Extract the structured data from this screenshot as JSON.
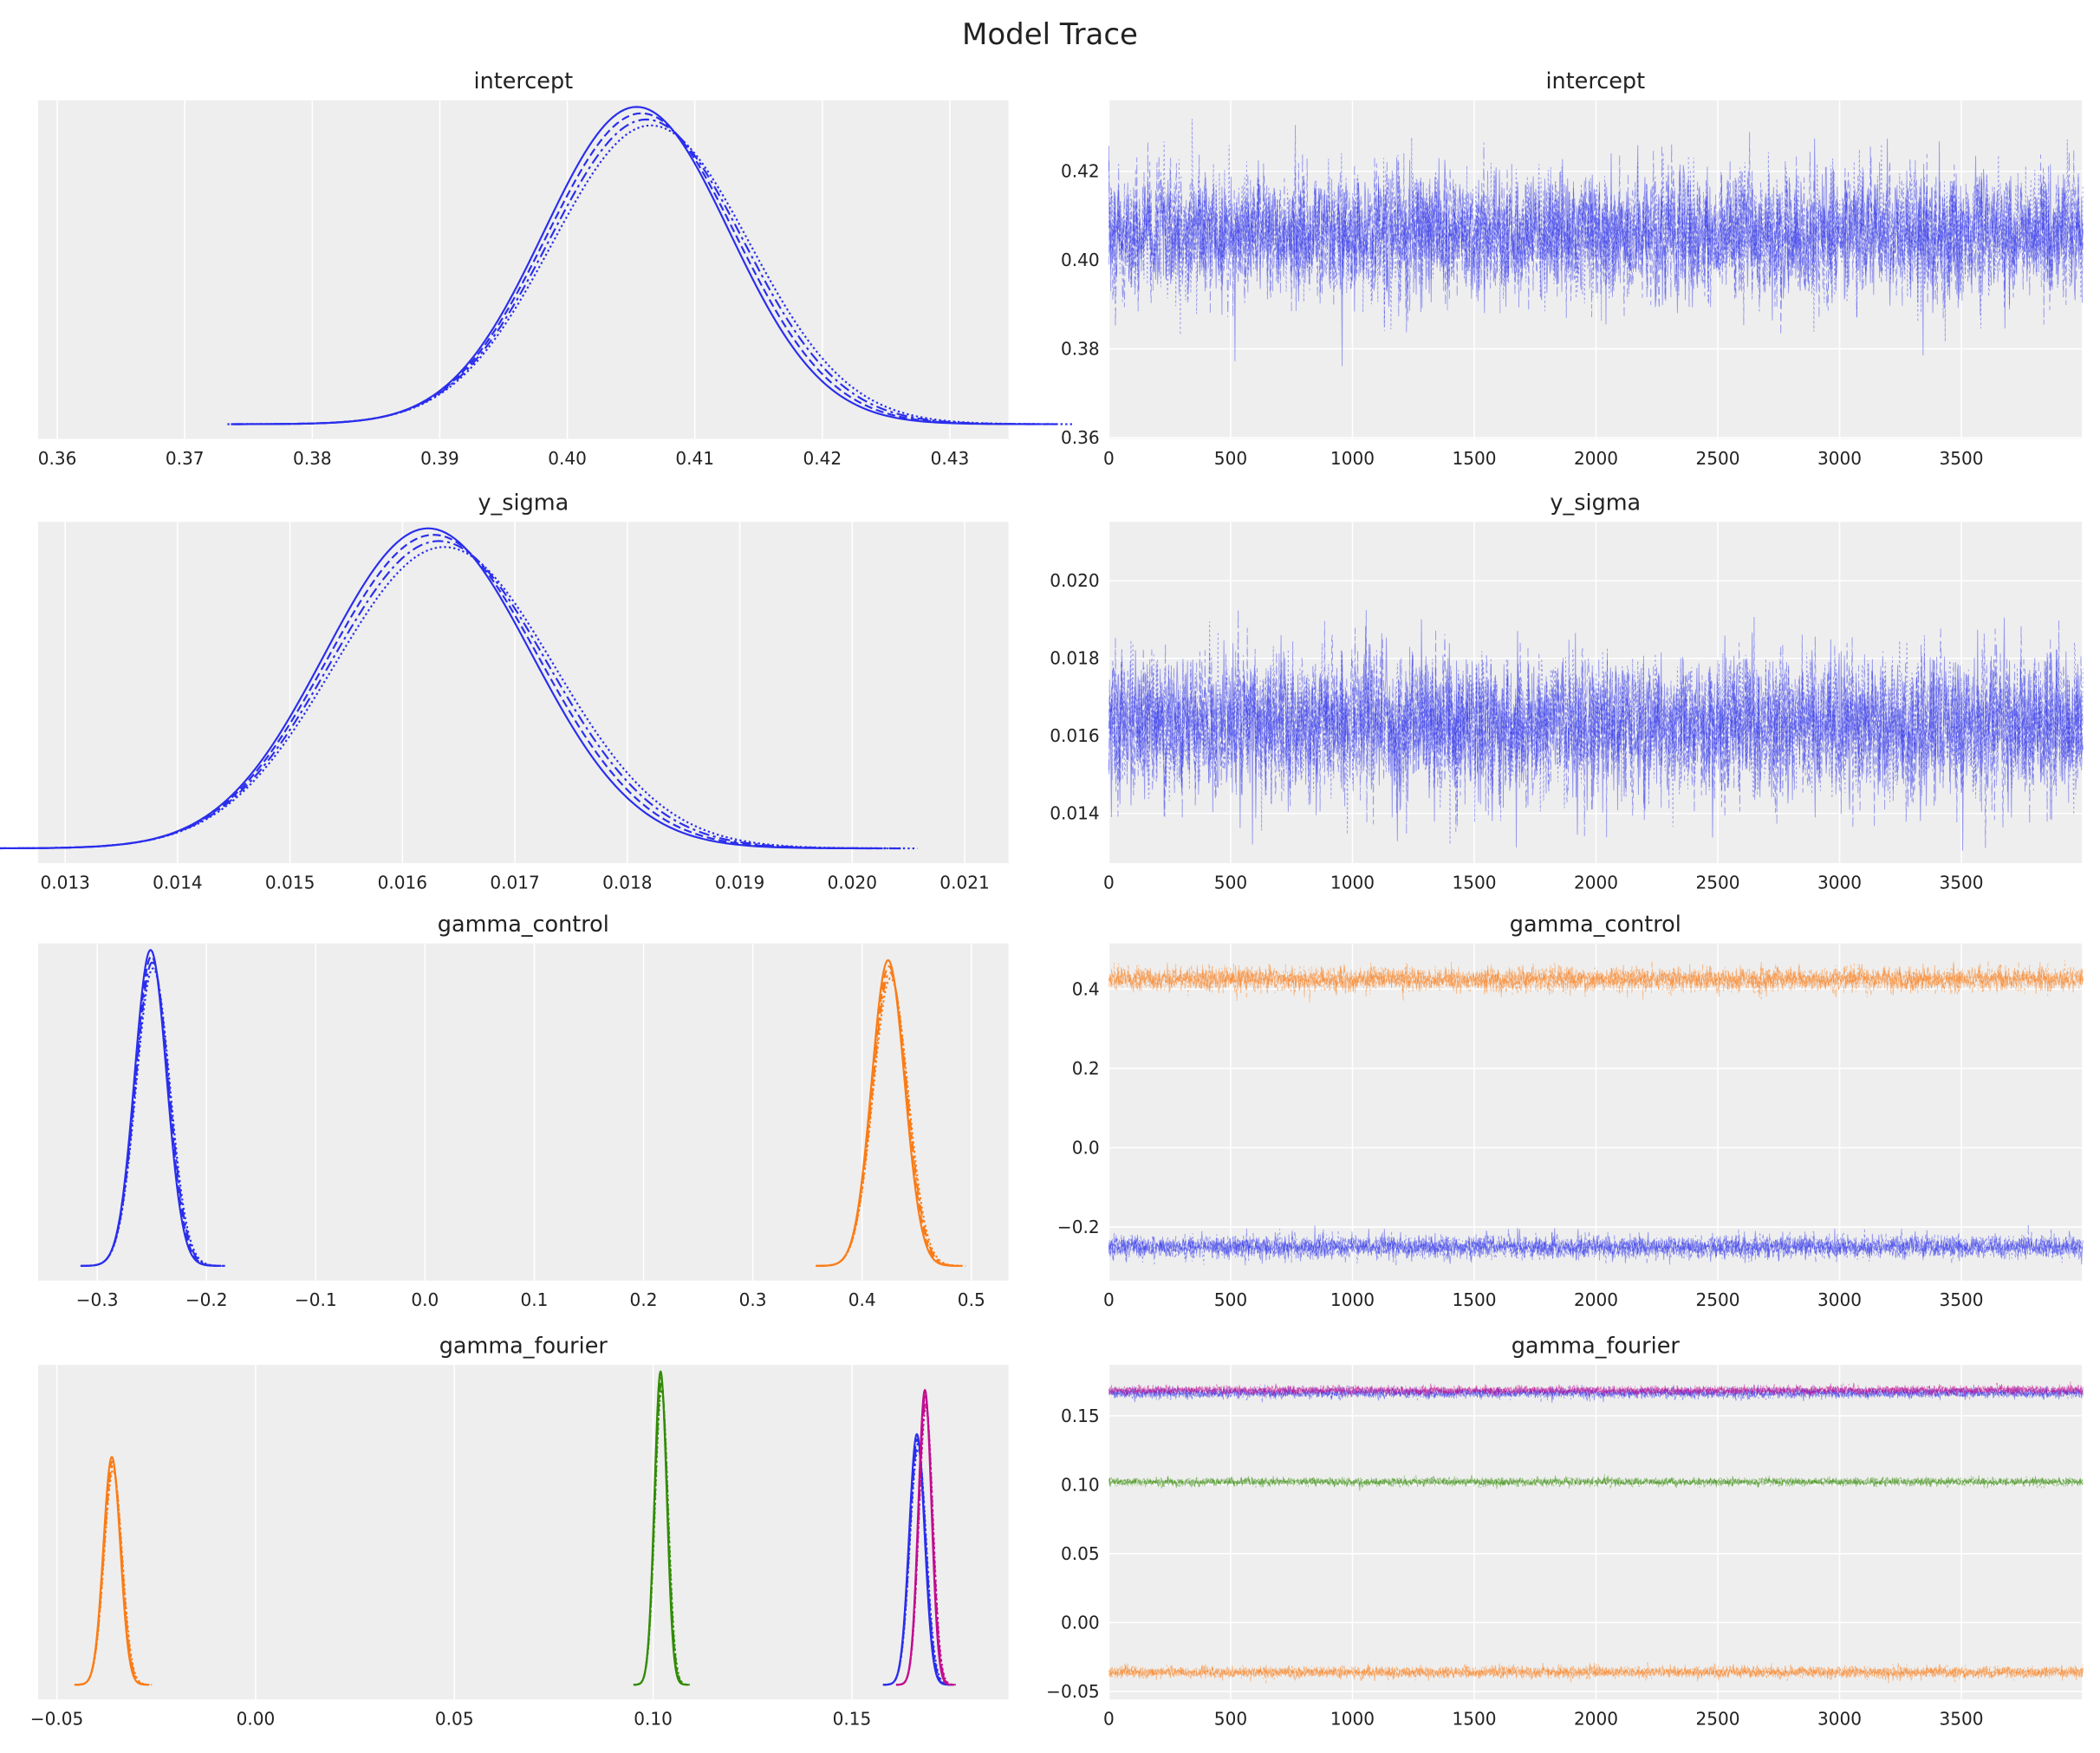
{
  "title": "Model Trace",
  "colors": {
    "background": "#eeeeee",
    "grid": "#ffffff",
    "text": "#222222"
  },
  "chart_data": [
    {
      "type": "line",
      "kind": "density",
      "title": "intercept",
      "grid": true,
      "xlim": [
        0.3585,
        0.4346
      ],
      "xticks": [
        0.36,
        0.37,
        0.38,
        0.39,
        0.4,
        0.41,
        0.42,
        0.43
      ],
      "xtick_labels": [
        "0.36",
        "0.37",
        "0.38",
        "0.39",
        "0.40",
        "0.41",
        "0.42",
        "0.43"
      ],
      "series": [
        {
          "color": "#2a2eec",
          "mean": 0.406,
          "sd": 0.0075,
          "chains": 4
        }
      ]
    },
    {
      "type": "line",
      "kind": "trace",
      "title": "intercept",
      "grid": true,
      "xlim": [
        0,
        3995
      ],
      "ylim": [
        0.3597,
        0.436
      ],
      "xticks": [
        0,
        500,
        1000,
        1500,
        2000,
        2500,
        3000,
        3500
      ],
      "xtick_labels": [
        "0",
        "500",
        "1000",
        "1500",
        "2000",
        "2500",
        "3000",
        "3500"
      ],
      "yticks": [
        0.36,
        0.38,
        0.4,
        0.42
      ],
      "ytick_labels": [
        "0.36",
        "0.38",
        "0.40",
        "0.42"
      ],
      "draws": 4000,
      "series": [
        {
          "color": "#2a2eec",
          "mean": 0.406,
          "sd": 0.0075,
          "chains": 4
        }
      ]
    },
    {
      "type": "line",
      "kind": "density",
      "title": "y_sigma",
      "grid": true,
      "xlim": [
        0.01276,
        0.02139
      ],
      "xticks": [
        0.013,
        0.014,
        0.015,
        0.016,
        0.017,
        0.018,
        0.019,
        0.02,
        0.021
      ],
      "xtick_labels": [
        "0.013",
        "0.014",
        "0.015",
        "0.016",
        "0.017",
        "0.018",
        "0.019",
        "0.020",
        "0.021"
      ],
      "series": [
        {
          "color": "#2a2eec",
          "mean": 0.0163,
          "sd": 0.00095,
          "chains": 4
        }
      ]
    },
    {
      "type": "line",
      "kind": "trace",
      "title": "y_sigma",
      "grid": true,
      "xlim": [
        0,
        3995
      ],
      "ylim": [
        0.01272,
        0.02152
      ],
      "xticks": [
        0,
        500,
        1000,
        1500,
        2000,
        2500,
        3000,
        3500
      ],
      "xtick_labels": [
        "0",
        "500",
        "1000",
        "1500",
        "2000",
        "2500",
        "3000",
        "3500"
      ],
      "yticks": [
        0.014,
        0.016,
        0.018,
        0.02
      ],
      "ytick_labels": [
        "0.014",
        "0.016",
        "0.018",
        "0.020"
      ],
      "draws": 4000,
      "series": [
        {
          "color": "#2a2eec",
          "mean": 0.0163,
          "sd": 0.00095,
          "chains": 4
        }
      ]
    },
    {
      "type": "line",
      "kind": "density",
      "title": "gamma_control",
      "grid": true,
      "xlim": [
        -0.354,
        0.534
      ],
      "xticks": [
        -0.3,
        -0.2,
        -0.1,
        0.0,
        0.1,
        0.2,
        0.3,
        0.4,
        0.5
      ],
      "xtick_labels": [
        "−0.3",
        "−0.2",
        "−0.1",
        "0.0",
        "0.1",
        "0.2",
        "0.3",
        "0.4",
        "0.5"
      ],
      "series": [
        {
          "color": "#2a2eec",
          "mean": -0.25,
          "sd": 0.015,
          "chains": 4
        },
        {
          "color": "#fa7c17",
          "mean": 0.425,
          "sd": 0.0155,
          "chains": 4
        }
      ]
    },
    {
      "type": "line",
      "kind": "trace",
      "title": "gamma_control",
      "grid": true,
      "xlim": [
        0,
        3995
      ],
      "ylim": [
        -0.335,
        0.515
      ],
      "xticks": [
        0,
        500,
        1000,
        1500,
        2000,
        2500,
        3000,
        3500
      ],
      "xtick_labels": [
        "0",
        "500",
        "1000",
        "1500",
        "2000",
        "2500",
        "3000",
        "3500"
      ],
      "yticks": [
        -0.2,
        0.0,
        0.2,
        0.4
      ],
      "ytick_labels": [
        "−0.2",
        "0.0",
        "0.2",
        "0.4"
      ],
      "draws": 4000,
      "series": [
        {
          "color": "#2a2eec",
          "mean": -0.25,
          "sd": 0.015,
          "chains": 4
        },
        {
          "color": "#fa7c17",
          "mean": 0.425,
          "sd": 0.0155,
          "chains": 4
        }
      ]
    },
    {
      "type": "line",
      "kind": "density",
      "title": "gamma_fourier",
      "grid": true,
      "xlim": [
        -0.0547,
        0.1894
      ],
      "xticks": [
        -0.05,
        0.0,
        0.05,
        0.1,
        0.15
      ],
      "xtick_labels": [
        "−0.05",
        "0.00",
        "0.05",
        "0.10",
        "0.15"
      ],
      "series": [
        {
          "color": "#fa7c17",
          "mean": -0.036,
          "sd": 0.0022,
          "chains": 4
        },
        {
          "color": "#328c06",
          "mean": 0.102,
          "sd": 0.0016,
          "chains": 4
        },
        {
          "color": "#2a2eec",
          "mean": 0.1665,
          "sd": 0.002,
          "chains": 4
        },
        {
          "color": "#c10c90",
          "mean": 0.1685,
          "sd": 0.0017,
          "chains": 4
        }
      ]
    },
    {
      "type": "line",
      "kind": "trace",
      "title": "gamma_fourier",
      "grid": true,
      "xlim": [
        0,
        3995
      ],
      "ylim": [
        -0.0558,
        0.1869
      ],
      "xticks": [
        0,
        500,
        1000,
        1500,
        2000,
        2500,
        3000,
        3500
      ],
      "xtick_labels": [
        "0",
        "500",
        "1000",
        "1500",
        "2000",
        "2500",
        "3000",
        "3500"
      ],
      "yticks": [
        -0.05,
        0.0,
        0.05,
        0.1,
        0.15
      ],
      "ytick_labels": [
        "−0.05",
        "0.00",
        "0.05",
        "0.10",
        "0.15"
      ],
      "draws": 4000,
      "series": [
        {
          "color": "#2a2eec",
          "mean": 0.1665,
          "sd": 0.002,
          "chains": 4
        },
        {
          "color": "#c10c90",
          "mean": 0.1685,
          "sd": 0.0017,
          "chains": 4
        },
        {
          "color": "#328c06",
          "mean": 0.102,
          "sd": 0.0016,
          "chains": 4
        },
        {
          "color": "#fa7c17",
          "mean": -0.036,
          "sd": 0.0022,
          "chains": 4
        }
      ]
    }
  ]
}
